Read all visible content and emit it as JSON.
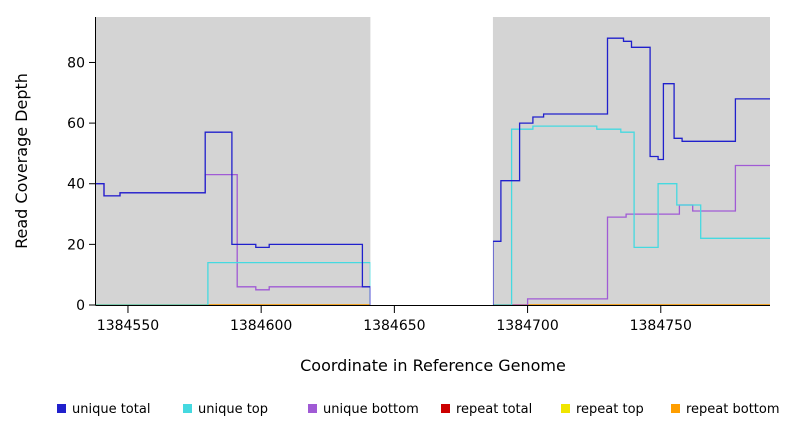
{
  "chart_data": {
    "type": "line",
    "subtype": "step-after",
    "title": "",
    "xlabel": "Coordinate in Reference Genome",
    "ylabel": "Read Coverage Depth",
    "xlim": [
      1384538,
      1384791
    ],
    "ylim": [
      0,
      95
    ],
    "x_ticks": [
      1384550,
      1384600,
      1384650,
      1384700,
      1384750
    ],
    "y_ticks": [
      0,
      20,
      40,
      60,
      80
    ],
    "grid": false,
    "legend_position": "bottom",
    "panel_background": "#d4d4d4",
    "gap_band": {
      "x_start": 1384641,
      "x_end": 1384687,
      "color": "#ffffff"
    },
    "draw_order": [
      3,
      4,
      5,
      2,
      1,
      0
    ],
    "series": [
      {
        "name": "unique total",
        "color": "#2020cc",
        "points": [
          [
            1384538,
            40
          ],
          [
            1384541,
            36
          ],
          [
            1384547,
            37
          ],
          [
            1384579,
            57
          ],
          [
            1384589,
            20
          ],
          [
            1384598,
            19
          ],
          [
            1384603,
            20
          ],
          [
            1384638,
            6
          ],
          [
            1384641,
            0
          ],
          [
            1384687,
            21
          ],
          [
            1384690,
            41
          ],
          [
            1384697,
            60
          ],
          [
            1384702,
            62
          ],
          [
            1384706,
            63
          ],
          [
            1384730,
            88
          ],
          [
            1384736,
            87
          ],
          [
            1384739,
            85
          ],
          [
            1384746,
            49
          ],
          [
            1384749,
            48
          ],
          [
            1384751,
            73
          ],
          [
            1384755,
            55
          ],
          [
            1384758,
            54
          ],
          [
            1384778,
            68
          ]
        ]
      },
      {
        "name": "unique top",
        "color": "#45d9e0",
        "points": [
          [
            1384538,
            0
          ],
          [
            1384580,
            14
          ],
          [
            1384641,
            0
          ],
          [
            1384694,
            58
          ],
          [
            1384702,
            59
          ],
          [
            1384726,
            58
          ],
          [
            1384735,
            57
          ],
          [
            1384740,
            19
          ],
          [
            1384749,
            40
          ],
          [
            1384756,
            33
          ],
          [
            1384765,
            22
          ]
        ]
      },
      {
        "name": "unique bottom",
        "color": "#a05ad5",
        "points": [
          [
            1384538,
            40
          ],
          [
            1384541,
            36
          ],
          [
            1384547,
            37
          ],
          [
            1384579,
            43
          ],
          [
            1384591,
            6
          ],
          [
            1384598,
            5
          ],
          [
            1384603,
            6
          ],
          [
            1384641,
            0
          ],
          [
            1384700,
            2
          ],
          [
            1384730,
            29
          ],
          [
            1384737,
            30
          ],
          [
            1384757,
            33
          ],
          [
            1384762,
            31
          ],
          [
            1384778,
            46
          ]
        ]
      },
      {
        "name": "repeat total",
        "color": "#cc0000",
        "points": [
          [
            1384538,
            0
          ]
        ]
      },
      {
        "name": "repeat top",
        "color": "#f0e500",
        "points": [
          [
            1384538,
            0
          ]
        ]
      },
      {
        "name": "repeat bottom",
        "color": "#ff9e00",
        "points": [
          [
            1384538,
            0
          ]
        ]
      }
    ]
  }
}
